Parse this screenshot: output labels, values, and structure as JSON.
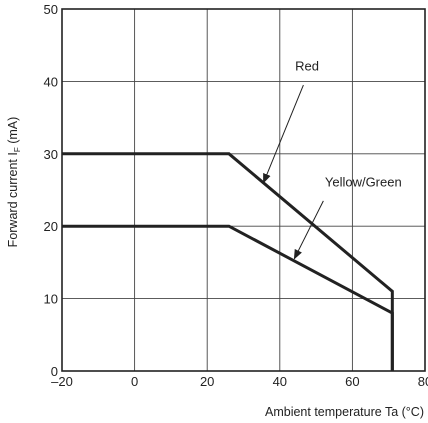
{
  "chart_data": {
    "type": "line",
    "xlabel": "Ambient temperature Ta (°C)",
    "ylabel_main": "Forward current I",
    "ylabel_sub": "F",
    "ylabel_unit": " (mA)",
    "xlim": [
      -20,
      80
    ],
    "ylim": [
      0,
      50
    ],
    "xticks": [
      -20,
      0,
      20,
      40,
      60,
      80
    ],
    "yticks": [
      0,
      10,
      20,
      30,
      40,
      50
    ],
    "xtick_labels": [
      "–20",
      "0",
      "20",
      "40",
      "60",
      "80"
    ],
    "ytick_labels": [
      "0",
      "10",
      "20",
      "30",
      "40",
      "50"
    ],
    "grid": true,
    "series": [
      {
        "name": "Red",
        "color": "#222222",
        "points": [
          [
            -20,
            30
          ],
          [
            26,
            30
          ],
          [
            71,
            11
          ],
          [
            71,
            0
          ]
        ]
      },
      {
        "name": "Yellow/Green",
        "color": "#222222",
        "points": [
          [
            -20,
            20
          ],
          [
            26,
            20
          ],
          [
            71,
            8
          ],
          [
            71,
            0
          ]
        ]
      }
    ],
    "annotations": [
      {
        "text": "Red",
        "series": "Red",
        "text_at": [
          47.5,
          41.5
        ],
        "arrow_from": [
          46.5,
          39.5
        ],
        "arrow_to": [
          35.5,
          26
        ]
      },
      {
        "text": "Yellow/Green",
        "series": "Yellow/Green",
        "text_at": [
          63,
          25.5
        ],
        "arrow_from": [
          52,
          23.5
        ],
        "arrow_to": [
          44,
          15.5
        ]
      }
    ]
  }
}
